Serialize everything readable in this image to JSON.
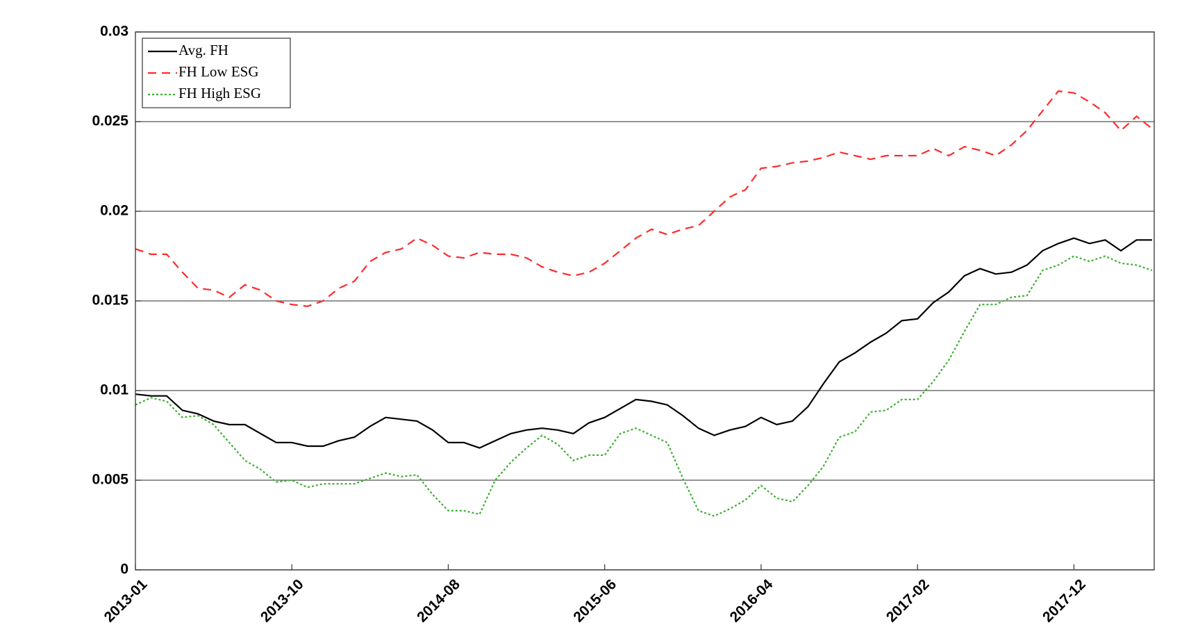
{
  "chart_data": {
    "type": "line",
    "categories": [
      "2013-01",
      null,
      null,
      null,
      null,
      null,
      null,
      null,
      null,
      null,
      "2013-10",
      null,
      null,
      null,
      null,
      null,
      null,
      null,
      null,
      null,
      "2014-08",
      null,
      null,
      null,
      null,
      null,
      null,
      null,
      null,
      null,
      "2015-06",
      null,
      null,
      null,
      null,
      null,
      null,
      null,
      null,
      null,
      "2016-04",
      null,
      null,
      null,
      null,
      null,
      null,
      null,
      null,
      null,
      "2017-02",
      null,
      null,
      null,
      null,
      null,
      null,
      null,
      null,
      null,
      "2017-12",
      null,
      null,
      null,
      null,
      null
    ],
    "series": [
      {
        "name": "Avg. FH",
        "color": "#000000",
        "dash": "solid",
        "values": [
          0.0098,
          0.0097,
          0.0097,
          0.0089,
          0.0087,
          0.0083,
          0.0081,
          0.0081,
          0.0076,
          0.0071,
          0.0071,
          0.0069,
          0.0069,
          0.0072,
          0.0074,
          0.008,
          0.0085,
          0.0084,
          0.0083,
          0.0078,
          0.0071,
          0.0071,
          0.0068,
          0.0072,
          0.0076,
          0.0078,
          0.0079,
          0.0078,
          0.0076,
          0.0082,
          0.0085,
          0.009,
          0.0095,
          0.0094,
          0.0092,
          0.0086,
          0.0079,
          0.0075,
          0.0078,
          0.008,
          0.0085,
          0.0081,
          0.0083,
          0.0091,
          0.0104,
          0.0116,
          0.0121,
          0.0127,
          0.0132,
          0.0139,
          0.014,
          0.0149,
          0.0155,
          0.0164,
          0.0168,
          0.0165,
          0.0166,
          0.017,
          0.0178,
          0.0182,
          0.0185,
          0.0182,
          0.0184,
          0.0178,
          0.0184,
          0.0184
        ]
      },
      {
        "name": "FH Low ESG",
        "color": "#ff2a2a",
        "dash": "dashed",
        "values": [
          0.0179,
          0.0176,
          0.0176,
          0.0166,
          0.0157,
          0.0156,
          0.0152,
          0.0159,
          0.0156,
          0.015,
          0.0148,
          0.0147,
          0.015,
          0.0157,
          0.0161,
          0.0172,
          0.0177,
          0.0179,
          0.0185,
          0.0181,
          0.0175,
          0.0174,
          0.0177,
          0.0176,
          0.0176,
          0.0174,
          0.0169,
          0.0166,
          0.0164,
          0.0166,
          0.0171,
          0.0178,
          0.0185,
          0.019,
          0.0187,
          0.019,
          0.0192,
          0.02,
          0.0208,
          0.0212,
          0.0224,
          0.0225,
          0.0227,
          0.0228,
          0.023,
          0.0233,
          0.0231,
          0.0229,
          0.0231,
          0.0231,
          0.0231,
          0.0235,
          0.0231,
          0.0236,
          0.0234,
          0.0231,
          0.0237,
          0.0245,
          0.0256,
          0.0267,
          0.0266,
          0.0261,
          0.0255,
          0.0245,
          0.0253,
          0.0246
        ]
      },
      {
        "name": "FH High ESG",
        "color": "#3cb030",
        "dash": "dotted",
        "values": [
          0.0092,
          0.0096,
          0.0094,
          0.0085,
          0.0086,
          0.0081,
          0.0071,
          0.0061,
          0.0056,
          0.0049,
          0.005,
          0.0046,
          0.0048,
          0.0048,
          0.0048,
          0.0051,
          0.0054,
          0.0052,
          0.0053,
          0.0042,
          0.0033,
          0.0033,
          0.0031,
          0.005,
          0.006,
          0.0068,
          0.0075,
          0.007,
          0.0061,
          0.0064,
          0.0064,
          0.0076,
          0.0079,
          0.0075,
          0.0071,
          0.0051,
          0.0033,
          0.003,
          0.0034,
          0.0039,
          0.0047,
          0.004,
          0.0038,
          0.0047,
          0.0058,
          0.0074,
          0.0077,
          0.0088,
          0.0089,
          0.0095,
          0.0095,
          0.0105,
          0.0117,
          0.0133,
          0.0148,
          0.0148,
          0.0152,
          0.0153,
          0.0167,
          0.017,
          0.0175,
          0.0172,
          0.0175,
          0.0171,
          0.017,
          0.0167
        ]
      }
    ],
    "ylim": [
      0,
      0.03
    ],
    "yticks": [
      0,
      0.005,
      0.01,
      0.015,
      0.02,
      0.025,
      0.03
    ],
    "grid": true,
    "legend": "upper left"
  }
}
